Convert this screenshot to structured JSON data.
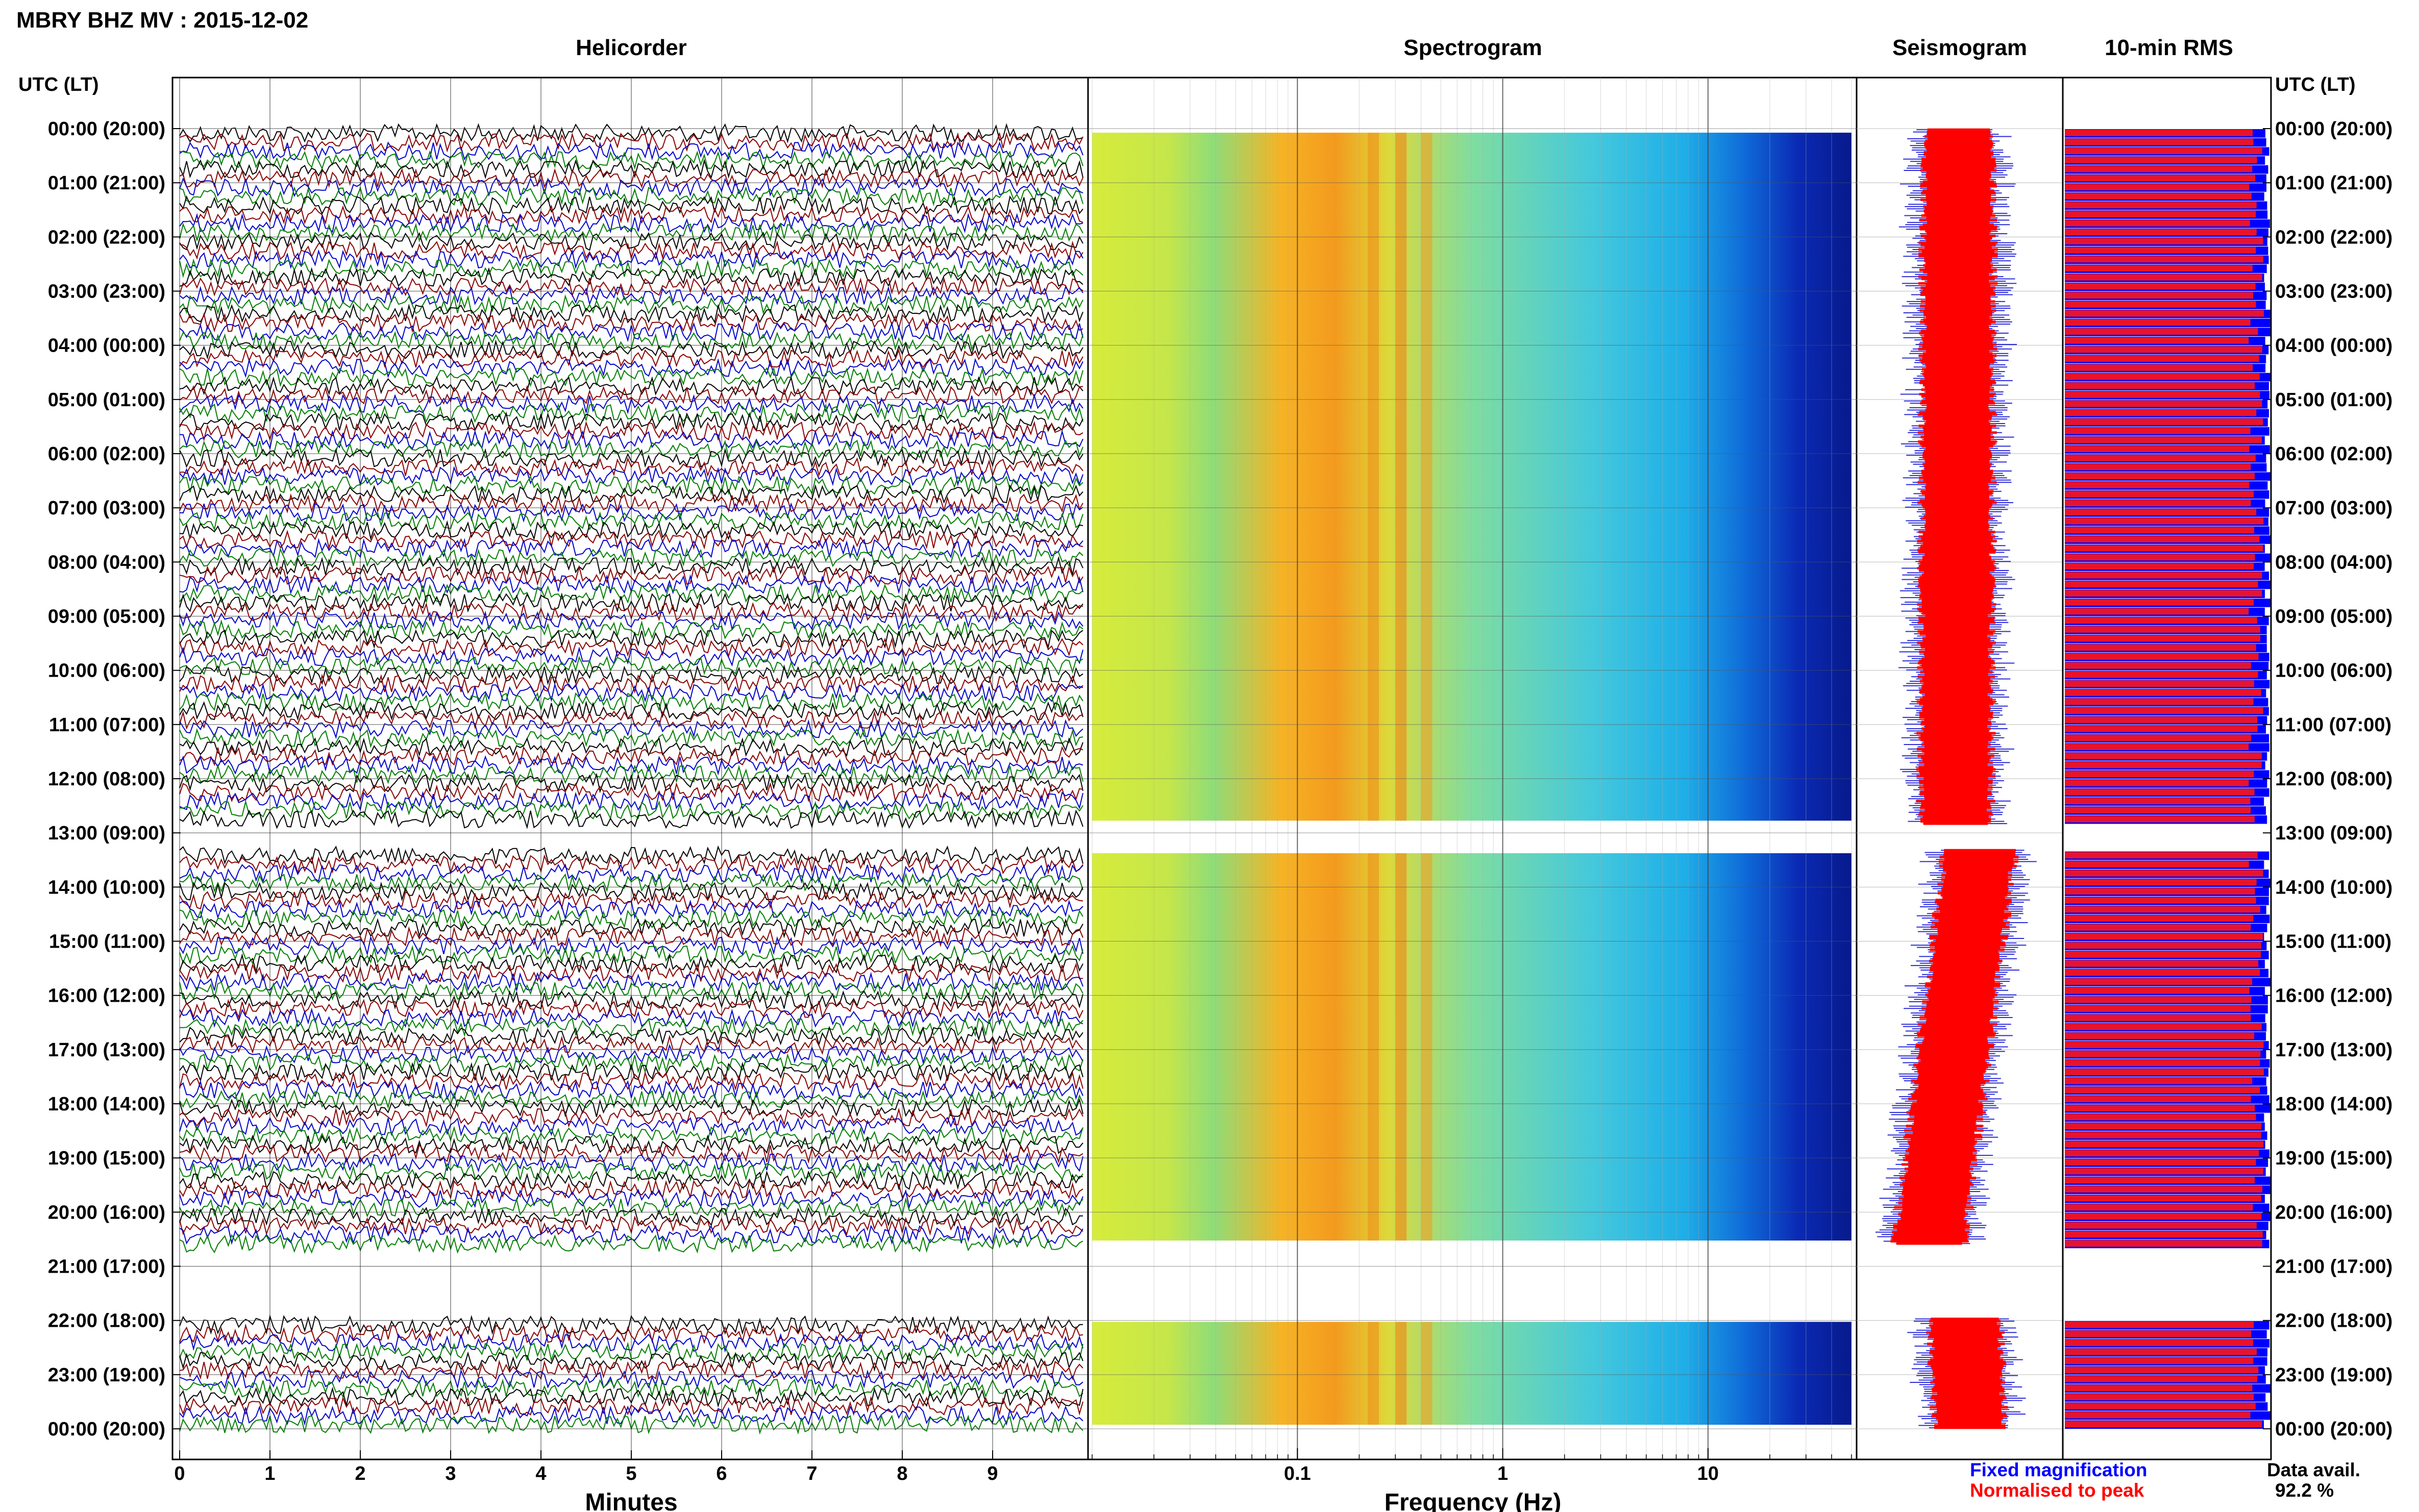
{
  "title": "MBRY BHZ MV : 2015-12-02",
  "panels": {
    "helicorder": "Helicorder",
    "spectrogram": "Spectrogram",
    "seismogram": "Seismogram",
    "rms": "10-min RMS"
  },
  "axis_header_left": "UTC (LT)",
  "axis_header_right": "UTC (LT)",
  "time_labels": [
    "00:00 (20:00)",
    "01:00 (21:00)",
    "02:00 (22:00)",
    "03:00 (23:00)",
    "04:00 (00:00)",
    "05:00 (01:00)",
    "06:00 (02:00)",
    "07:00 (03:00)",
    "08:00 (04:00)",
    "09:00 (05:00)",
    "10:00 (06:00)",
    "11:00 (07:00)",
    "12:00 (08:00)",
    "13:00 (09:00)",
    "14:00 (10:00)",
    "15:00 (11:00)",
    "16:00 (12:00)",
    "17:00 (13:00)",
    "18:00 (14:00)",
    "19:00 (15:00)",
    "20:00 (16:00)",
    "21:00 (17:00)",
    "22:00 (18:00)",
    "23:00 (19:00)",
    "00:00 (20:00)"
  ],
  "helicorder_x_ticks": [
    "0",
    "1",
    "2",
    "3",
    "4",
    "5",
    "6",
    "7",
    "8",
    "9"
  ],
  "helicorder_xlabel": "Minutes",
  "spectrogram_x_ticks": [
    "0.1",
    "1",
    "10"
  ],
  "spectrogram_xlabel": "Frequency (Hz)",
  "legend": {
    "fixed": "Fixed magnification",
    "normalised": "Normalised to peak",
    "fixed_color": "#0000ff",
    "normalised_color": "#ff0000"
  },
  "data_avail_label": "Data avail.",
  "data_avail_value": "92.2 %",
  "colors": {
    "helicorder_traces": [
      "#000000",
      "#8b0000",
      "#0000cd",
      "#008000"
    ],
    "rms_fixed": "#0000ff",
    "rms_normalised": "#e8132b"
  },
  "chart_data": {
    "type": "heatmap",
    "station": "MBRY BHZ MV",
    "date": "2015-12-02",
    "y_axis": "UTC hour (LT)",
    "y_range_hours": [
      0,
      24
    ],
    "data_gaps_hours": [
      [
        12.85,
        13.3
      ],
      [
        20.6,
        21.95
      ]
    ],
    "helicorder": {
      "xlabel": "Minutes",
      "x_range": [
        0,
        10
      ],
      "traces_per_hour": 6
    },
    "spectrogram": {
      "xlabel": "Frequency (Hz)",
      "x_scale": "log",
      "x_range": [
        0.01,
        50
      ],
      "peak_band_hz": [
        0.2,
        0.5
      ]
    },
    "data_availability_percent": 92.2
  }
}
